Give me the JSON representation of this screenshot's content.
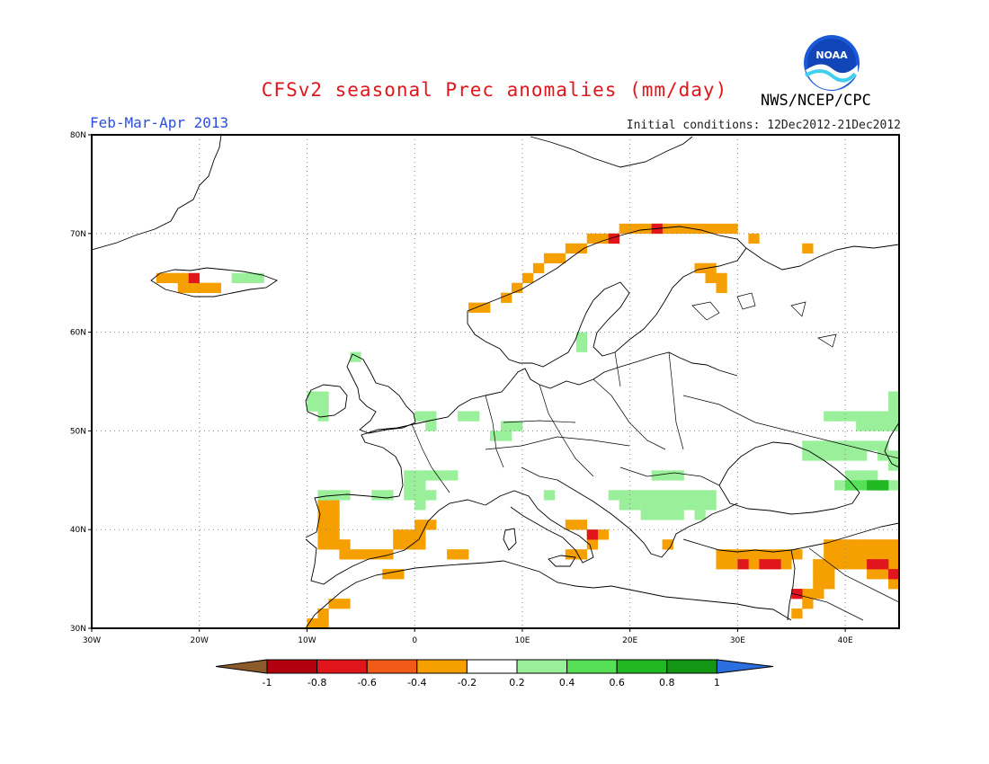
{
  "title": "CFSv2 seasonal Prec anomalies (mm/day)",
  "season": "Feb-Mar-Apr 2013",
  "initial_conditions": "Initial conditions: 12Dec2012-21Dec2012",
  "agency": "NWS/NCEP/CPC",
  "logo_text": "NOAA",
  "axes": {
    "lon_range": [
      -30,
      45
    ],
    "lat_range": [
      30,
      80
    ],
    "lon_ticks": [
      "30W",
      "20W",
      "10W",
      "0",
      "10E",
      "20E",
      "30E",
      "40E"
    ],
    "lat_ticks": [
      "80N",
      "70N",
      "60N",
      "50N",
      "40N",
      "30N"
    ],
    "grid": "dotted"
  },
  "colorbar": {
    "labels": [
      "-1",
      "-0.8",
      "-0.6",
      "-0.4",
      "-0.2",
      "0.2",
      "0.4",
      "0.6",
      "0.8",
      "1"
    ],
    "colors": [
      "#8b5a2b",
      "#b2000f",
      "#e0161c",
      "#f25a18",
      "#f5a000",
      "#ffffff",
      "#9af09a",
      "#55e055",
      "#22b822",
      "#139613",
      "#2b6ee0"
    ]
  },
  "chart_data": {
    "type": "heatmap",
    "title": "CFSv2 seasonal Prec anomalies (mm/day)",
    "units": "mm/day",
    "cell_size_deg": 1,
    "levels": {
      "-0.8": "#b2000f",
      "-0.6": "#e0161c",
      "-0.4": "#f25a18",
      "-0.3": "#f5a000",
      "0.3": "#9af09a",
      "0.5": "#55e055",
      "0.7": "#22b822"
    },
    "anomaly_regions": [
      {
        "name": "Norway coast",
        "value": -0.3,
        "cells": [
          [
            5,
            62
          ],
          [
            6,
            62
          ],
          [
            8,
            63
          ],
          [
            9,
            64
          ],
          [
            10,
            65
          ],
          [
            11,
            66
          ],
          [
            12,
            67
          ],
          [
            13,
            67
          ],
          [
            14,
            68
          ],
          [
            15,
            68
          ],
          [
            16,
            69
          ],
          [
            17,
            69
          ],
          [
            18,
            69
          ],
          [
            19,
            70
          ],
          [
            20,
            70
          ],
          [
            21,
            70
          ],
          [
            22,
            70
          ],
          [
            23,
            70
          ],
          [
            24,
            70
          ],
          [
            25,
            70
          ],
          [
            26,
            70
          ],
          [
            27,
            70
          ],
          [
            28,
            70
          ],
          [
            29,
            70
          ],
          [
            31,
            69
          ],
          [
            36,
            68
          ]
        ]
      },
      {
        "name": "Norway north strong",
        "value": -0.6,
        "cells": [
          [
            18,
            69
          ],
          [
            22,
            70
          ]
        ]
      },
      {
        "name": "Finland",
        "value": -0.3,
        "cells": [
          [
            26,
            66
          ],
          [
            27,
            66
          ],
          [
            27,
            65
          ],
          [
            28,
            65
          ],
          [
            28,
            64
          ]
        ]
      },
      {
        "name": "Iceland",
        "value": -0.3,
        "cells": [
          [
            -24,
            65
          ],
          [
            -23,
            65
          ],
          [
            -22,
            65
          ],
          [
            -22,
            64
          ],
          [
            -21,
            64
          ],
          [
            -20,
            64
          ],
          [
            -19,
            64
          ]
        ]
      },
      {
        "name": "Iceland strong",
        "value": -0.6,
        "cells": [
          [
            -21,
            65
          ]
        ]
      },
      {
        "name": "Iberia",
        "value": -0.3,
        "cells": [
          [
            -9,
            42
          ],
          [
            -8,
            42
          ],
          [
            -9,
            41
          ],
          [
            -8,
            41
          ],
          [
            -9,
            40
          ],
          [
            -8,
            40
          ],
          [
            -9,
            39
          ],
          [
            -8,
            39
          ],
          [
            -7,
            38
          ],
          [
            -9,
            38
          ],
          [
            -8,
            38
          ],
          [
            -7,
            37
          ],
          [
            -6,
            37
          ],
          [
            -5,
            37
          ],
          [
            -4,
            37
          ],
          [
            -2,
            39
          ],
          [
            -1,
            39
          ],
          [
            0,
            40
          ],
          [
            1,
            40
          ],
          [
            0,
            39
          ],
          [
            0,
            38
          ],
          [
            -1,
            38
          ],
          [
            -2,
            38
          ],
          [
            -3,
            37
          ],
          [
            4,
            37
          ],
          [
            3,
            37
          ],
          [
            -3,
            35
          ],
          [
            -2,
            35
          ],
          [
            -9,
            31
          ],
          [
            -10,
            30
          ],
          [
            -9,
            30
          ],
          [
            -8,
            32
          ],
          [
            -7,
            32
          ]
        ]
      },
      {
        "name": "Italy",
        "value": -0.3,
        "cells": [
          [
            14,
            40
          ],
          [
            15,
            40
          ],
          [
            16,
            39
          ],
          [
            17,
            39
          ],
          [
            16,
            38
          ],
          [
            14,
            37
          ],
          [
            15,
            37
          ]
        ]
      },
      {
        "name": "Italy strong",
        "value": -0.6,
        "cells": [
          [
            16,
            39
          ]
        ]
      },
      {
        "name": "Greece",
        "value": -0.3,
        "cells": [
          [
            23,
            38
          ]
        ]
      },
      {
        "name": "Turkey south",
        "value": -0.3,
        "cells": [
          [
            28,
            37
          ],
          [
            29,
            37
          ],
          [
            30,
            37
          ],
          [
            31,
            37
          ],
          [
            32,
            37
          ],
          [
            33,
            37
          ],
          [
            34,
            37
          ],
          [
            35,
            37
          ],
          [
            28,
            36
          ],
          [
            29,
            36
          ],
          [
            31,
            36
          ],
          [
            34,
            36
          ]
        ]
      },
      {
        "name": "Turkey strong",
        "value": -0.6,
        "cells": [
          [
            30,
            36
          ],
          [
            32,
            36
          ],
          [
            33,
            36
          ]
        ]
      },
      {
        "name": "Middle East",
        "value": -0.3,
        "cells": [
          [
            38,
            38
          ],
          [
            39,
            38
          ],
          [
            40,
            38
          ],
          [
            41,
            38
          ],
          [
            42,
            38
          ],
          [
            43,
            38
          ],
          [
            44,
            38
          ],
          [
            38,
            37
          ],
          [
            39,
            37
          ],
          [
            40,
            37
          ],
          [
            41,
            37
          ],
          [
            42,
            37
          ],
          [
            43,
            37
          ],
          [
            44,
            37
          ],
          [
            37,
            36
          ],
          [
            38,
            36
          ],
          [
            39,
            36
          ],
          [
            40,
            36
          ],
          [
            41,
            36
          ],
          [
            42,
            36
          ],
          [
            43,
            36
          ],
          [
            44,
            36
          ],
          [
            37,
            35
          ],
          [
            38,
            35
          ],
          [
            42,
            35
          ],
          [
            43,
            35
          ],
          [
            44,
            35
          ],
          [
            37,
            34
          ],
          [
            38,
            34
          ],
          [
            44,
            34
          ],
          [
            36,
            33
          ],
          [
            37,
            33
          ],
          [
            36,
            32
          ],
          [
            35,
            31
          ]
        ]
      },
      {
        "name": "Middle East strong",
        "value": -0.6,
        "cells": [
          [
            42,
            36
          ],
          [
            43,
            36
          ],
          [
            44,
            35
          ],
          [
            35,
            33
          ]
        ]
      },
      {
        "name": "Ireland",
        "value": 0.3,
        "cells": [
          [
            -10,
            53
          ],
          [
            -9,
            53
          ],
          [
            -10,
            52
          ],
          [
            -9,
            52
          ],
          [
            -9,
            51
          ]
        ]
      },
      {
        "name": "Scotland",
        "value": 0.3,
        "cells": [
          [
            -6,
            57
          ]
        ]
      },
      {
        "name": "Channel",
        "value": 0.3,
        "cells": [
          [
            0,
            51
          ],
          [
            1,
            51
          ],
          [
            1,
            50
          ],
          [
            4,
            51
          ],
          [
            5,
            51
          ]
        ]
      },
      {
        "name": "Germany",
        "value": 0.3,
        "cells": [
          [
            8,
            50
          ],
          [
            9,
            50
          ],
          [
            7,
            49
          ],
          [
            8,
            49
          ]
        ]
      },
      {
        "name": "Sweden",
        "value": 0.3,
        "cells": [
          [
            15,
            59
          ],
          [
            15,
            58
          ]
        ]
      },
      {
        "name": "France south",
        "value": 0.3,
        "cells": [
          [
            -1,
            45
          ],
          [
            0,
            45
          ],
          [
            1,
            45
          ],
          [
            2,
            45
          ],
          [
            3,
            45
          ],
          [
            -1,
            44
          ],
          [
            0,
            44
          ],
          [
            -1,
            43
          ],
          [
            0,
            43
          ],
          [
            1,
            43
          ],
          [
            0,
            42
          ]
        ]
      },
      {
        "name": "North Spain",
        "value": 0.3,
        "cells": [
          [
            -9,
            43
          ],
          [
            -8,
            43
          ],
          [
            -7,
            43
          ],
          [
            -4,
            43
          ],
          [
            -3,
            43
          ]
        ]
      },
      {
        "name": "Iceland east",
        "value": 0.3,
        "cells": [
          [
            -17,
            65
          ],
          [
            -16,
            65
          ],
          [
            -15,
            65
          ]
        ]
      },
      {
        "name": "Corsica",
        "value": 0.3,
        "cells": [
          [
            12,
            43
          ]
        ]
      },
      {
        "name": "Balkans",
        "value": 0.3,
        "cells": [
          [
            22,
            45
          ],
          [
            23,
            45
          ],
          [
            24,
            45
          ],
          [
            18,
            43
          ],
          [
            19,
            43
          ],
          [
            20,
            43
          ],
          [
            21,
            43
          ],
          [
            22,
            43
          ],
          [
            23,
            43
          ],
          [
            24,
            43
          ],
          [
            25,
            43
          ],
          [
            26,
            43
          ],
          [
            27,
            43
          ],
          [
            19,
            42
          ],
          [
            20,
            42
          ],
          [
            21,
            42
          ],
          [
            22,
            42
          ],
          [
            23,
            42
          ],
          [
            24,
            42
          ],
          [
            25,
            42
          ],
          [
            26,
            42
          ],
          [
            27,
            42
          ],
          [
            21,
            41
          ],
          [
            22,
            41
          ],
          [
            23,
            41
          ],
          [
            24,
            41
          ],
          [
            26,
            41
          ]
        ]
      },
      {
        "name": "Ukraine south",
        "value": 0.3,
        "cells": [
          [
            36,
            48
          ],
          [
            37,
            48
          ],
          [
            38,
            48
          ],
          [
            39,
            48
          ],
          [
            40,
            48
          ],
          [
            41,
            48
          ],
          [
            42,
            48
          ],
          [
            43,
            48
          ],
          [
            36,
            47
          ],
          [
            37,
            47
          ],
          [
            38,
            47
          ],
          [
            39,
            47
          ],
          [
            40,
            47
          ],
          [
            41,
            47
          ],
          [
            43,
            47
          ],
          [
            44,
            47
          ],
          [
            44,
            46
          ],
          [
            40,
            45
          ],
          [
            41,
            45
          ],
          [
            42,
            45
          ],
          [
            39,
            44
          ],
          [
            40,
            44
          ],
          [
            43,
            44
          ],
          [
            44,
            44
          ],
          [
            38,
            51
          ],
          [
            39,
            51
          ],
          [
            40,
            51
          ],
          [
            41,
            51
          ],
          [
            42,
            51
          ],
          [
            43,
            51
          ],
          [
            44,
            51
          ],
          [
            44,
            52
          ],
          [
            44,
            53
          ],
          [
            41,
            50
          ],
          [
            42,
            50
          ],
          [
            43,
            50
          ],
          [
            44,
            50
          ]
        ]
      },
      {
        "name": "Caucasus",
        "value": 0.5,
        "cells": [
          [
            40,
            44
          ],
          [
            41,
            44
          ],
          [
            42,
            44
          ],
          [
            43,
            44
          ]
        ]
      },
      {
        "name": "Caucasus strong",
        "value": 0.7,
        "cells": [
          [
            42,
            44
          ],
          [
            43,
            44
          ]
        ]
      }
    ]
  }
}
